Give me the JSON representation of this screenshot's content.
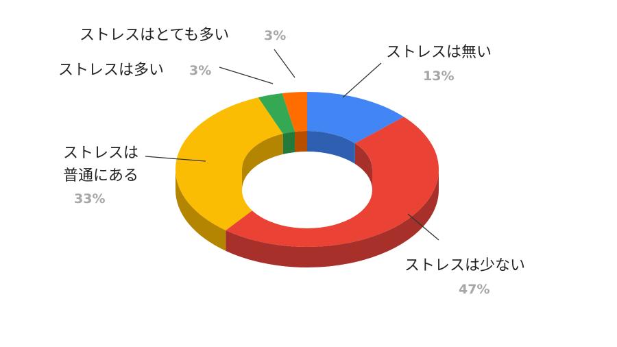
{
  "chart_data": {
    "type": "pie",
    "style": "3d-donut",
    "title": "",
    "legend": "none",
    "slices": [
      {
        "name": "ストレスは無い",
        "value": 13,
        "label": "13%",
        "color": "#4285f4",
        "side": "#2e5fb0"
      },
      {
        "name": "ストレスは少ない",
        "value": 47,
        "label": "47%",
        "color": "#ea4335",
        "side": "#a8302a"
      },
      {
        "name": "ストレスは普通にある",
        "value": 33,
        "label": "33%",
        "color": "#fbbc04",
        "side": "#b38500"
      },
      {
        "name": "ストレスは多い",
        "value": 3,
        "label": "3%",
        "color": "#34a853",
        "side": "#247a3a"
      },
      {
        "name": "ストレスはとても多い",
        "value": 3,
        "label": "3%",
        "color": "#ff6d01",
        "side": "#b84f00"
      }
    ],
    "label_lines": {
      "very_high": "ストレスはとても多い",
      "high": "ストレスは多い",
      "normal_1": "ストレスは",
      "normal_2": "普通にある",
      "low": "ストレスは少ない",
      "none": "ストレスは無い"
    }
  }
}
